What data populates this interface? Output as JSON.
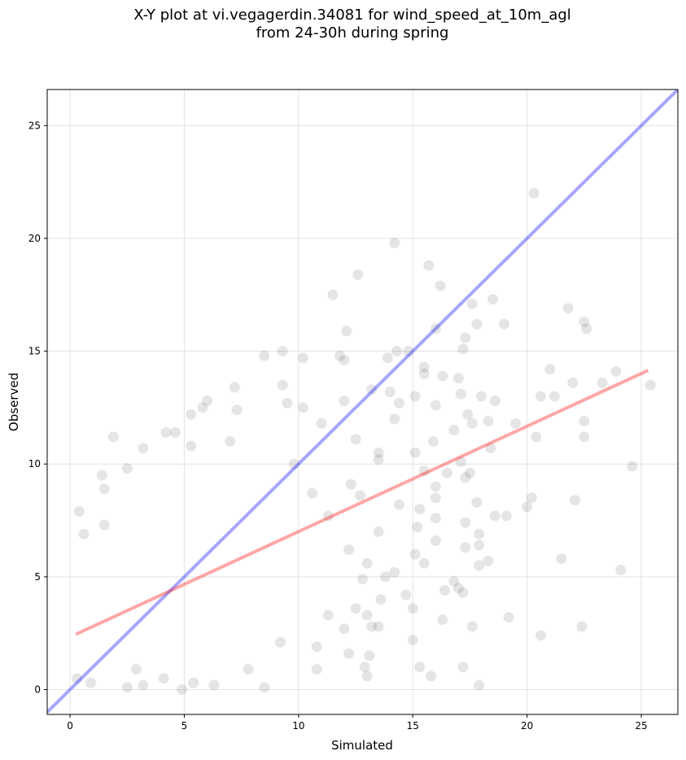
{
  "chart_data": {
    "type": "scatter",
    "title_lines": [
      "X-Y plot at vi.vegagerdin.34081 for wind_speed_at_10m_agl",
      "from 24-30h during spring"
    ],
    "xlabel": "Simulated",
    "ylabel": "Observed",
    "xlim": [
      -1.0,
      26.6
    ],
    "ylim": [
      -1.1,
      26.6
    ],
    "xticks": [
      0,
      5,
      10,
      15,
      20,
      25
    ],
    "yticks": [
      0,
      5,
      10,
      15,
      20,
      25
    ],
    "grid": true,
    "point_color": "#000000",
    "point_alpha": 0.1,
    "identity_line": {
      "color": "#0000ff",
      "alpha": 0.35,
      "from": [
        -1.0,
        -1.0
      ],
      "to": [
        26.6,
        26.6
      ]
    },
    "fit_line": {
      "color": "#ff0000",
      "alpha": 0.35,
      "from": [
        0.25,
        2.45
      ],
      "to": [
        25.3,
        14.15
      ]
    },
    "points": [
      [
        20.3,
        22.0
      ],
      [
        14.2,
        19.8
      ],
      [
        15.7,
        18.8
      ],
      [
        12.6,
        18.4
      ],
      [
        16.2,
        17.9
      ],
      [
        11.5,
        17.5
      ],
      [
        18.5,
        17.3
      ],
      [
        17.6,
        17.1
      ],
      [
        21.8,
        16.9
      ],
      [
        19.0,
        16.2
      ],
      [
        22.5,
        16.3
      ],
      [
        22.6,
        16.0
      ],
      [
        17.8,
        16.2
      ],
      [
        16.0,
        16.0
      ],
      [
        12.1,
        15.9
      ],
      [
        17.3,
        15.6
      ],
      [
        17.2,
        15.1
      ],
      [
        14.3,
        15.0
      ],
      [
        14.8,
        15.0
      ],
      [
        9.3,
        15.0
      ],
      [
        8.5,
        14.8
      ],
      [
        11.8,
        14.8
      ],
      [
        10.2,
        14.7
      ],
      [
        13.9,
        14.7
      ],
      [
        12.0,
        14.6
      ],
      [
        15.5,
        14.3
      ],
      [
        21.0,
        14.2
      ],
      [
        23.9,
        14.1
      ],
      [
        15.5,
        14.0
      ],
      [
        16.3,
        13.9
      ],
      [
        17.0,
        13.8
      ],
      [
        22.0,
        13.6
      ],
      [
        23.3,
        13.6
      ],
      [
        25.4,
        13.5
      ],
      [
        9.3,
        13.5
      ],
      [
        7.2,
        13.4
      ],
      [
        13.2,
        13.3
      ],
      [
        14.0,
        13.2
      ],
      [
        15.1,
        13.0
      ],
      [
        20.6,
        13.0
      ],
      [
        21.2,
        13.0
      ],
      [
        17.1,
        13.1
      ],
      [
        18.0,
        13.0
      ],
      [
        12.0,
        12.8
      ],
      [
        18.6,
        12.8
      ],
      [
        14.4,
        12.7
      ],
      [
        9.5,
        12.7
      ],
      [
        5.8,
        12.5
      ],
      [
        6.0,
        12.8
      ],
      [
        7.3,
        12.4
      ],
      [
        10.2,
        12.5
      ],
      [
        16.0,
        12.6
      ],
      [
        17.4,
        12.2
      ],
      [
        14.2,
        12.0
      ],
      [
        5.3,
        12.2
      ],
      [
        19.5,
        11.8
      ],
      [
        18.3,
        11.9
      ],
      [
        17.6,
        11.8
      ],
      [
        22.5,
        11.9
      ],
      [
        11.0,
        11.8
      ],
      [
        16.8,
        11.5
      ],
      [
        15.9,
        11.0
      ],
      [
        20.4,
        11.2
      ],
      [
        22.5,
        11.2
      ],
      [
        1.9,
        11.2
      ],
      [
        7.0,
        11.0
      ],
      [
        4.2,
        11.4
      ],
      [
        4.6,
        11.4
      ],
      [
        12.5,
        11.1
      ],
      [
        18.4,
        10.7
      ],
      [
        15.1,
        10.5
      ],
      [
        13.5,
        10.5
      ],
      [
        17.1,
        10.1
      ],
      [
        5.3,
        10.8
      ],
      [
        3.2,
        10.7
      ],
      [
        13.5,
        10.2
      ],
      [
        15.5,
        9.7
      ],
      [
        16.5,
        9.6
      ],
      [
        17.5,
        9.6
      ],
      [
        24.6,
        9.9
      ],
      [
        9.8,
        10.0
      ],
      [
        2.5,
        9.8
      ],
      [
        1.4,
        9.5
      ],
      [
        17.3,
        9.4
      ],
      [
        12.3,
        9.1
      ],
      [
        16.0,
        9.0
      ],
      [
        1.5,
        8.9
      ],
      [
        20.2,
        8.5
      ],
      [
        22.1,
        8.4
      ],
      [
        20.0,
        8.1
      ],
      [
        17.8,
        8.3
      ],
      [
        15.3,
        8.0
      ],
      [
        16.0,
        8.5
      ],
      [
        10.6,
        8.7
      ],
      [
        12.7,
        8.6
      ],
      [
        14.4,
        8.2
      ],
      [
        11.3,
        7.7
      ],
      [
        18.6,
        7.7
      ],
      [
        19.1,
        7.7
      ],
      [
        17.3,
        7.4
      ],
      [
        16.0,
        7.6
      ],
      [
        15.2,
        7.2
      ],
      [
        13.5,
        7.0
      ],
      [
        1.5,
        7.3
      ],
      [
        0.4,
        7.9
      ],
      [
        0.6,
        6.9
      ],
      [
        17.9,
        6.9
      ],
      [
        17.9,
        6.4
      ],
      [
        16.0,
        6.6
      ],
      [
        17.3,
        6.3
      ],
      [
        15.1,
        6.0
      ],
      [
        12.2,
        6.2
      ],
      [
        13.0,
        5.6
      ],
      [
        21.5,
        5.8
      ],
      [
        24.1,
        5.3
      ],
      [
        18.3,
        5.7
      ],
      [
        17.9,
        5.5
      ],
      [
        15.5,
        5.6
      ],
      [
        14.2,
        5.2
      ],
      [
        13.8,
        5.0
      ],
      [
        12.8,
        4.9
      ],
      [
        16.8,
        4.8
      ],
      [
        17.0,
        4.5
      ],
      [
        16.4,
        4.4
      ],
      [
        17.2,
        4.3
      ],
      [
        14.7,
        4.2
      ],
      [
        13.6,
        4.0
      ],
      [
        12.5,
        3.6
      ],
      [
        15.0,
        3.6
      ],
      [
        16.3,
        3.1
      ],
      [
        13.0,
        3.3
      ],
      [
        11.3,
        3.3
      ],
      [
        19.2,
        3.2
      ],
      [
        13.5,
        2.8
      ],
      [
        12.0,
        2.7
      ],
      [
        13.2,
        2.8
      ],
      [
        17.6,
        2.8
      ],
      [
        22.4,
        2.8
      ],
      [
        15.0,
        2.2
      ],
      [
        20.6,
        2.4
      ],
      [
        12.2,
        1.6
      ],
      [
        13.1,
        1.5
      ],
      [
        10.8,
        1.9
      ],
      [
        12.9,
        1.0
      ],
      [
        15.3,
        1.0
      ],
      [
        17.2,
        1.0
      ],
      [
        13.0,
        0.6
      ],
      [
        15.8,
        0.6
      ],
      [
        17.9,
        0.2
      ],
      [
        10.8,
        0.9
      ],
      [
        8.5,
        0.1
      ],
      [
        0.3,
        0.5
      ],
      [
        0.9,
        0.3
      ],
      [
        5.4,
        0.3
      ],
      [
        4.9,
        0.0
      ],
      [
        3.2,
        0.2
      ],
      [
        9.2,
        2.1
      ],
      [
        2.5,
        0.1
      ],
      [
        6.3,
        0.2
      ],
      [
        4.1,
        0.5
      ],
      [
        2.9,
        0.9
      ],
      [
        7.8,
        0.9
      ]
    ]
  }
}
